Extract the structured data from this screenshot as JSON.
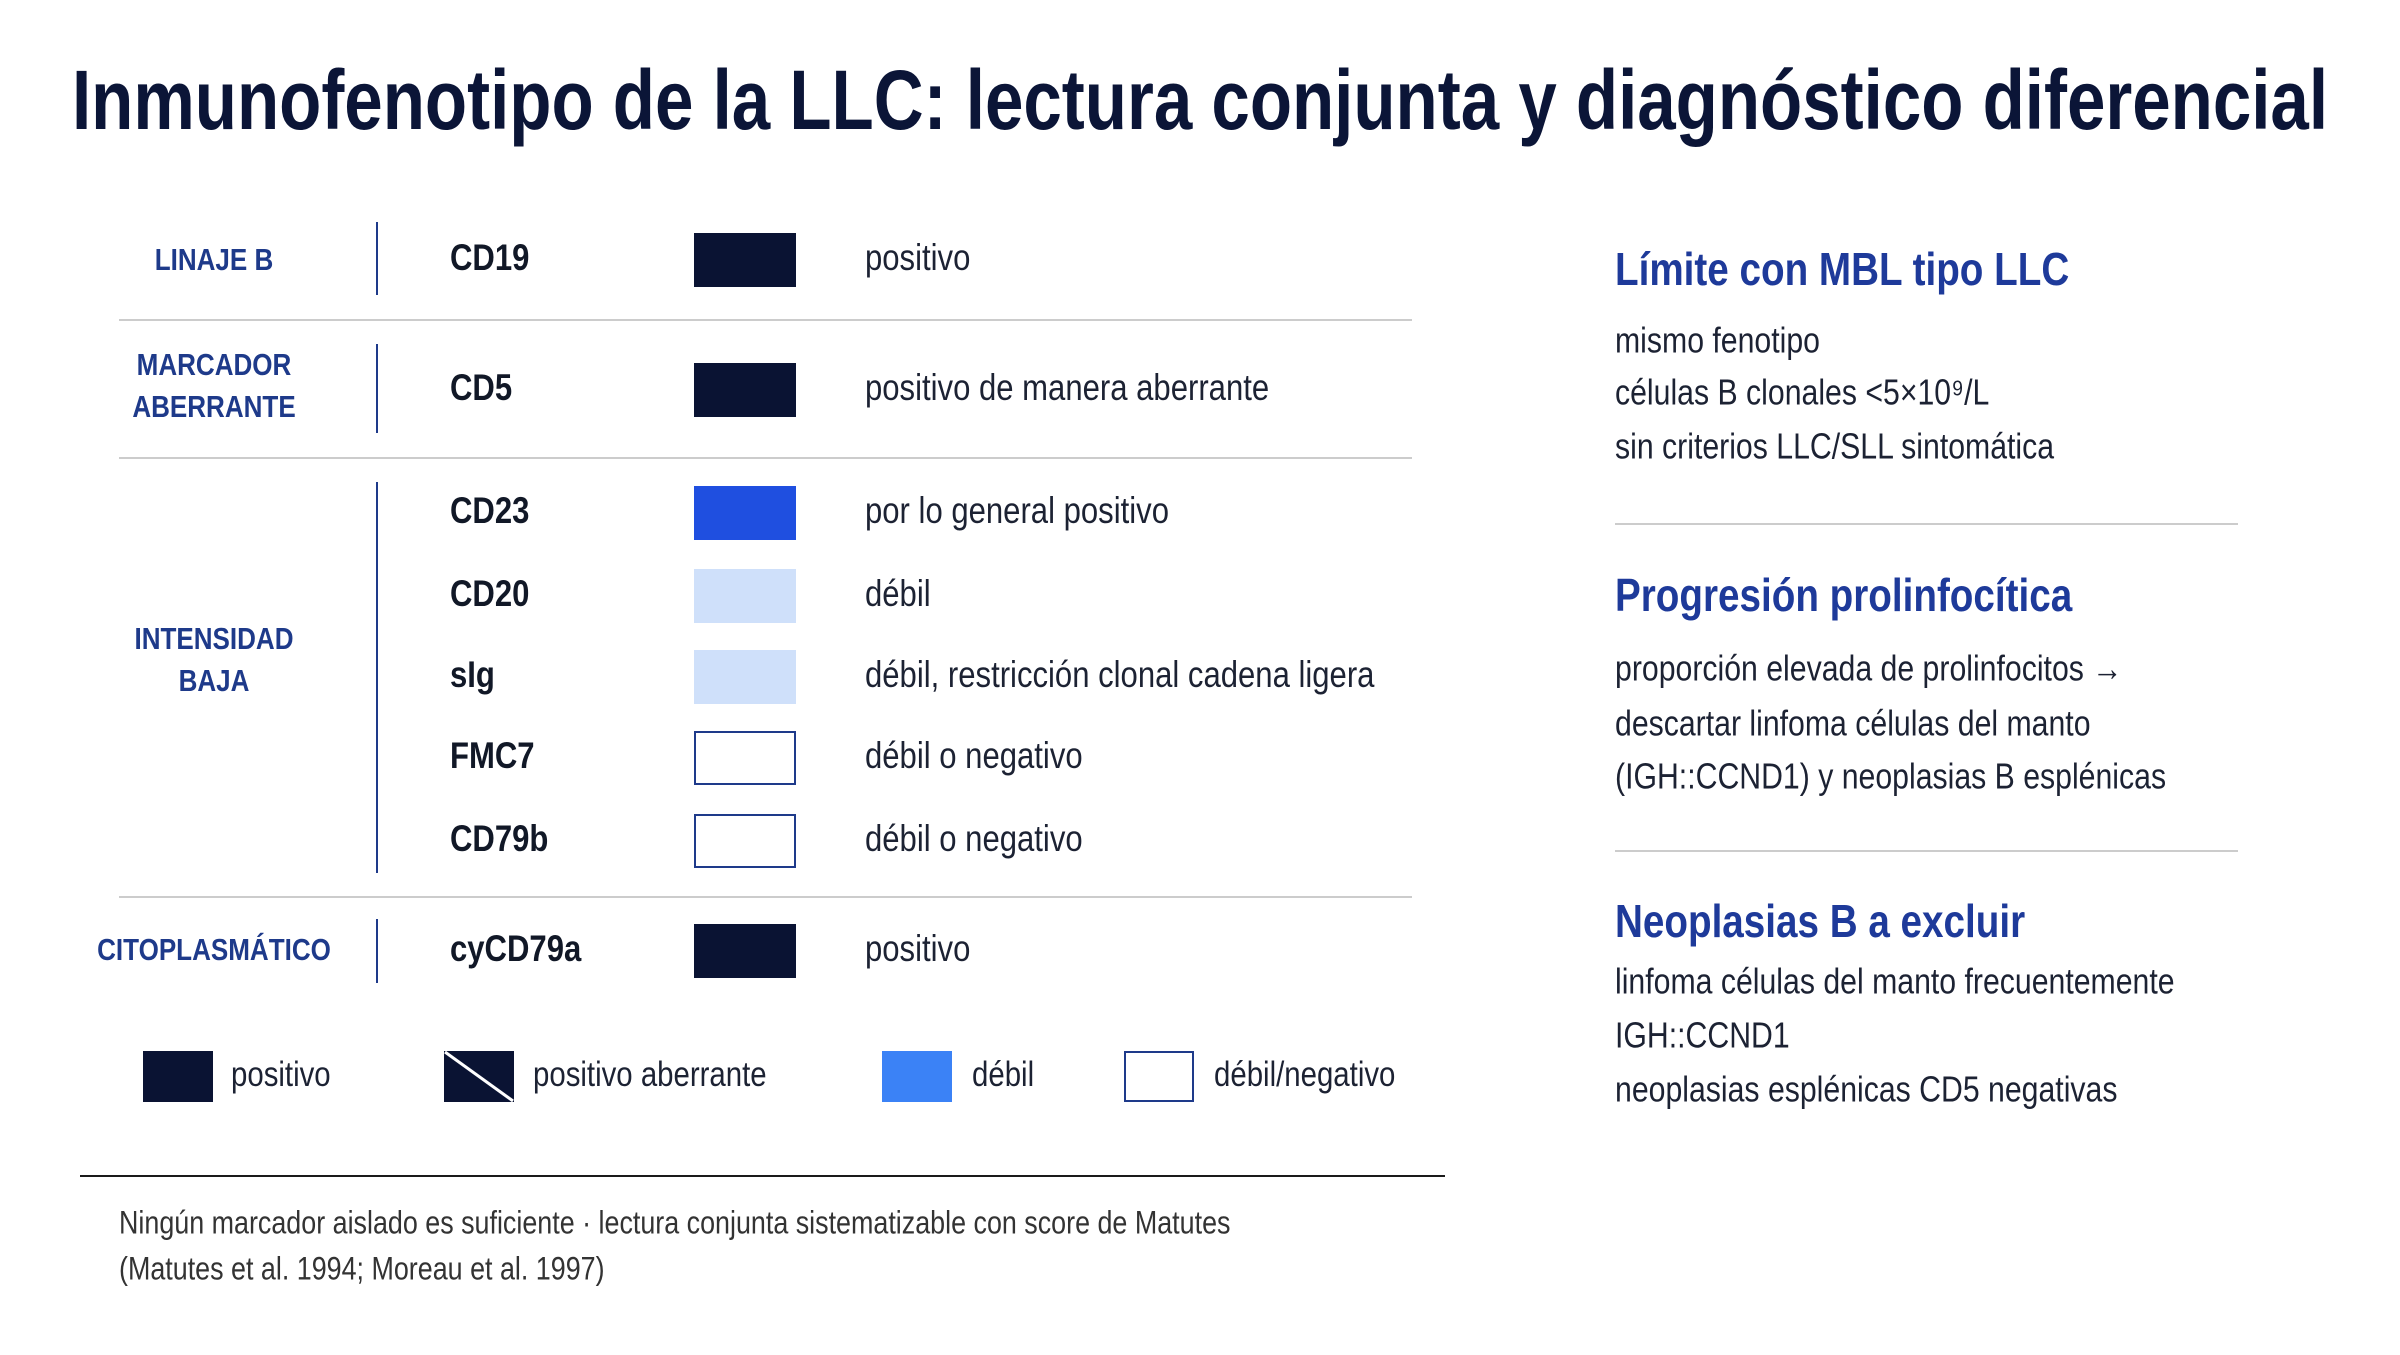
{
  "title": "Inmunofenotipo de la LLC: lectura conjunta y diagnóstico diferencial",
  "groups": [
    {
      "label": [
        "LINAJE B"
      ],
      "markers": [
        {
          "name": "CD19",
          "color": "#0a1333",
          "description": "positivo"
        }
      ]
    },
    {
      "label": [
        "MARCADOR",
        "ABERRANTE"
      ],
      "markers": [
        {
          "name": "CD5",
          "color": "#0a1333",
          "description": "positivo de manera aberrante"
        }
      ]
    },
    {
      "label": [
        "INTENSIDAD",
        "BAJA"
      ],
      "markers": [
        {
          "name": "CD23",
          "color": "#1f4fe0",
          "description": "por lo general positivo"
        },
        {
          "name": "CD20",
          "color": "#cfe0fa",
          "description": "débil"
        },
        {
          "name": "sIg",
          "color": "#cfe0fa",
          "description": "débil, restricción clonal cadena ligera"
        },
        {
          "name": "FMC7",
          "color": "#ffffff",
          "description": "débil o negativo"
        },
        {
          "name": "CD79b",
          "color": "#ffffff",
          "description": "débil o negativo"
        }
      ]
    },
    {
      "label": [
        "CITOPLASMÁTICO"
      ],
      "markers": [
        {
          "name": "cyCD79a",
          "color": "#0a1333",
          "description": "positivo"
        }
      ]
    }
  ],
  "legend": [
    {
      "label": "positivo",
      "color": "#0a1333"
    },
    {
      "label": "positivo aberrante",
      "color": "#0a1333"
    },
    {
      "label": "débil",
      "color": "#3b82f6"
    },
    {
      "label": "débil/negativo",
      "color": "#ffffff"
    }
  ],
  "footer": [
    "Ningún marcador aislado es suficiente · lectura conjunta sistematizable con score de Matutes",
    "(Matutes et al. 1994; Moreau et al. 1997)"
  ],
  "panels": [
    {
      "title": "Límite con MBL tipo LLC",
      "lines": [
        "mismo fenotipo",
        "células B clonales <5×10⁹/L",
        "sin criterios LLC/SLL sintomática"
      ]
    },
    {
      "title": "Progresión prolinfocítica",
      "lines": [
        "proporción elevada de prolinfocitos →",
        "descartar linfoma células del manto",
        "(IGH::CCND1) y neoplasias B esplénicas"
      ]
    },
    {
      "title": "Neoplasias B a excluir",
      "lines": [
        "linfoma células del manto frecuentemente",
        "IGH::CCND1",
        "neoplasias esplénicas CD5 negativas"
      ]
    }
  ]
}
